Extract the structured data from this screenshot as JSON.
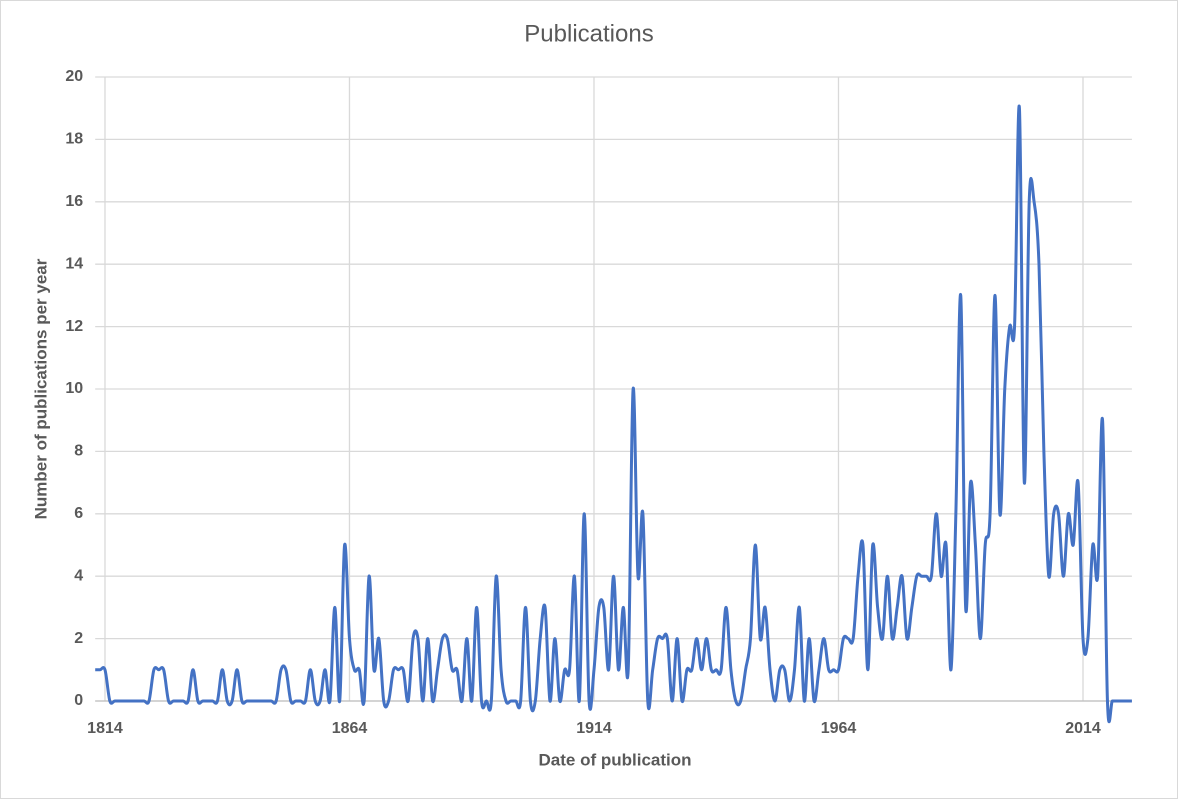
{
  "chart_data": {
    "type": "line",
    "title": "Publications",
    "x_label": "Date of publication",
    "y_label": "Number of publications per year",
    "x": [
      1812,
      1813,
      1814,
      1815,
      1816,
      1817,
      1818,
      1819,
      1820,
      1821,
      1822,
      1823,
      1824,
      1825,
      1826,
      1827,
      1828,
      1829,
      1830,
      1831,
      1832,
      1833,
      1834,
      1835,
      1836,
      1837,
      1838,
      1839,
      1840,
      1841,
      1842,
      1843,
      1844,
      1845,
      1846,
      1847,
      1848,
      1849,
      1850,
      1851,
      1852,
      1853,
      1854,
      1855,
      1856,
      1857,
      1858,
      1859,
      1860,
      1861,
      1862,
      1863,
      1864,
      1865,
      1866,
      1867,
      1868,
      1869,
      1870,
      1871,
      1872,
      1873,
      1874,
      1875,
      1876,
      1877,
      1878,
      1879,
      1880,
      1881,
      1882,
      1883,
      1884,
      1885,
      1886,
      1887,
      1888,
      1889,
      1890,
      1891,
      1892,
      1893,
      1894,
      1895,
      1896,
      1897,
      1898,
      1899,
      1900,
      1901,
      1902,
      1903,
      1904,
      1905,
      1906,
      1907,
      1908,
      1909,
      1910,
      1911,
      1912,
      1913,
      1914,
      1915,
      1916,
      1917,
      1918,
      1919,
      1920,
      1921,
      1922,
      1923,
      1924,
      1925,
      1926,
      1927,
      1928,
      1929,
      1930,
      1931,
      1932,
      1933,
      1934,
      1935,
      1936,
      1937,
      1938,
      1939,
      1940,
      1941,
      1942,
      1943,
      1944,
      1945,
      1946,
      1947,
      1948,
      1949,
      1950,
      1951,
      1952,
      1953,
      1954,
      1955,
      1956,
      1957,
      1958,
      1959,
      1960,
      1961,
      1962,
      1963,
      1964,
      1965,
      1966,
      1967,
      1968,
      1969,
      1970,
      1971,
      1972,
      1973,
      1974,
      1975,
      1976,
      1977,
      1978,
      1979,
      1980,
      1981,
      1982,
      1983,
      1984,
      1985,
      1986,
      1987,
      1988,
      1989,
      1990,
      1991,
      1992,
      1993,
      1994,
      1995,
      1996,
      1997,
      1998,
      1999,
      2000,
      2001,
      2002,
      2003,
      2004,
      2005,
      2006,
      2007,
      2008,
      2009,
      2010,
      2011,
      2012,
      2013,
      2014,
      2015,
      2016,
      2017,
      2018,
      2019,
      2020,
      2021,
      2022,
      2023,
      2024
    ],
    "series": [
      {
        "name": "Publications",
        "color": "#4472c4",
        "values": [
          1,
          1,
          1,
          0,
          0,
          0,
          0,
          0,
          0,
          0,
          0,
          0,
          1,
          1,
          1,
          0,
          0,
          0,
          0,
          0,
          1,
          0,
          0,
          0,
          0,
          0,
          1,
          0,
          0,
          1,
          0,
          0,
          0,
          0,
          0,
          0,
          0,
          0,
          1,
          1,
          0,
          0,
          0,
          0,
          1,
          0,
          0,
          1,
          0,
          3,
          0,
          5,
          2,
          1,
          1,
          0,
          4,
          1,
          2,
          0,
          0,
          1,
          1,
          1,
          0,
          2,
          2,
          0,
          2,
          0,
          1,
          2,
          2,
          1,
          1,
          0,
          2,
          0,
          3,
          0,
          0,
          0,
          4,
          1,
          0,
          0,
          0,
          0,
          3,
          0,
          0,
          2,
          3,
          0,
          2,
          0,
          1,
          1,
          4,
          0,
          6,
          0,
          1,
          3,
          3,
          1,
          4,
          1,
          3,
          1,
          10,
          4,
          6,
          0,
          1,
          2,
          2,
          2,
          0,
          2,
          0,
          1,
          1,
          2,
          1,
          2,
          1,
          1,
          1,
          3,
          1,
          0,
          0,
          1,
          2,
          5,
          2,
          3,
          1,
          0,
          1,
          1,
          0,
          1,
          3,
          0,
          2,
          0,
          1,
          2,
          1,
          1,
          1,
          2,
          2,
          2,
          4,
          5,
          1,
          5,
          3,
          2,
          4,
          2,
          3,
          4,
          2,
          3,
          4,
          4,
          4,
          4,
          6,
          4,
          5,
          1,
          6,
          13,
          3,
          7,
          5,
          2,
          5,
          6,
          13,
          6,
          10,
          12,
          12,
          19,
          7,
          16,
          16,
          14,
          8,
          4,
          6,
          6,
          4,
          6,
          5,
          7,
          2,
          2,
          5,
          4,
          9,
          0,
          0,
          0,
          0,
          0,
          0
        ]
      }
    ],
    "xlim": [
      1812,
      2024
    ],
    "xticks": [
      1814,
      1864,
      1914,
      1964,
      2014
    ],
    "ylim": [
      0,
      20
    ],
    "yticks": [
      0,
      2,
      4,
      6,
      8,
      10,
      12,
      14,
      16,
      18,
      20
    ],
    "grid": true
  }
}
